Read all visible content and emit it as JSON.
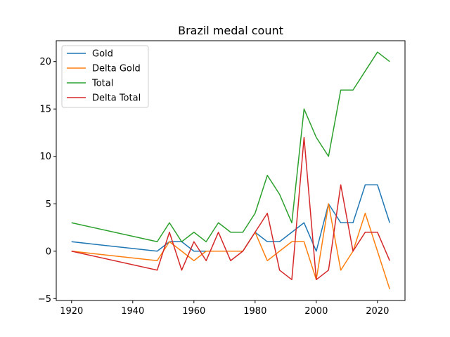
{
  "chart_data": {
    "type": "line",
    "title": "Brazil medal count",
    "xlabel": "",
    "ylabel": "",
    "xlim": [
      1915,
      2029
    ],
    "ylim": [
      -5.2,
      22.2
    ],
    "xticks": [
      1920,
      1940,
      1960,
      1980,
      2000,
      2020
    ],
    "yticks": [
      -5,
      0,
      5,
      10,
      15,
      20
    ],
    "grid": false,
    "legend_position": "top-left",
    "x": [
      1920,
      1948,
      1952,
      1956,
      1960,
      1964,
      1968,
      1972,
      1976,
      1980,
      1984,
      1988,
      1992,
      1996,
      2000,
      2004,
      2008,
      2012,
      2016,
      2020,
      2024
    ],
    "series": [
      {
        "name": "Gold",
        "color": "#1f77b4",
        "values": [
          1,
          0,
          1,
          1,
          0,
          0,
          0,
          0,
          0,
          2,
          1,
          1,
          2,
          3,
          0,
          5,
          3,
          3,
          7,
          7,
          3
        ]
      },
      {
        "name": "Delta Gold",
        "color": "#ff7f0e",
        "values": [
          0,
          -1,
          1,
          0,
          -1,
          0,
          0,
          0,
          0,
          2,
          -1,
          0,
          1,
          1,
          -3,
          5,
          -2,
          0,
          4,
          0,
          -4
        ]
      },
      {
        "name": "Total",
        "color": "#2ca02c",
        "values": [
          3,
          1,
          3,
          1,
          2,
          1,
          3,
          2,
          2,
          4,
          8,
          6,
          3,
          15,
          12,
          10,
          17,
          17,
          19,
          21,
          20
        ]
      },
      {
        "name": "Delta Total",
        "color": "#d62728",
        "values": [
          0,
          -2,
          2,
          -2,
          1,
          -1,
          2,
          -1,
          0,
          2,
          4,
          -2,
          -3,
          12,
          -3,
          -2,
          7,
          0,
          2,
          2,
          -1
        ]
      }
    ]
  }
}
